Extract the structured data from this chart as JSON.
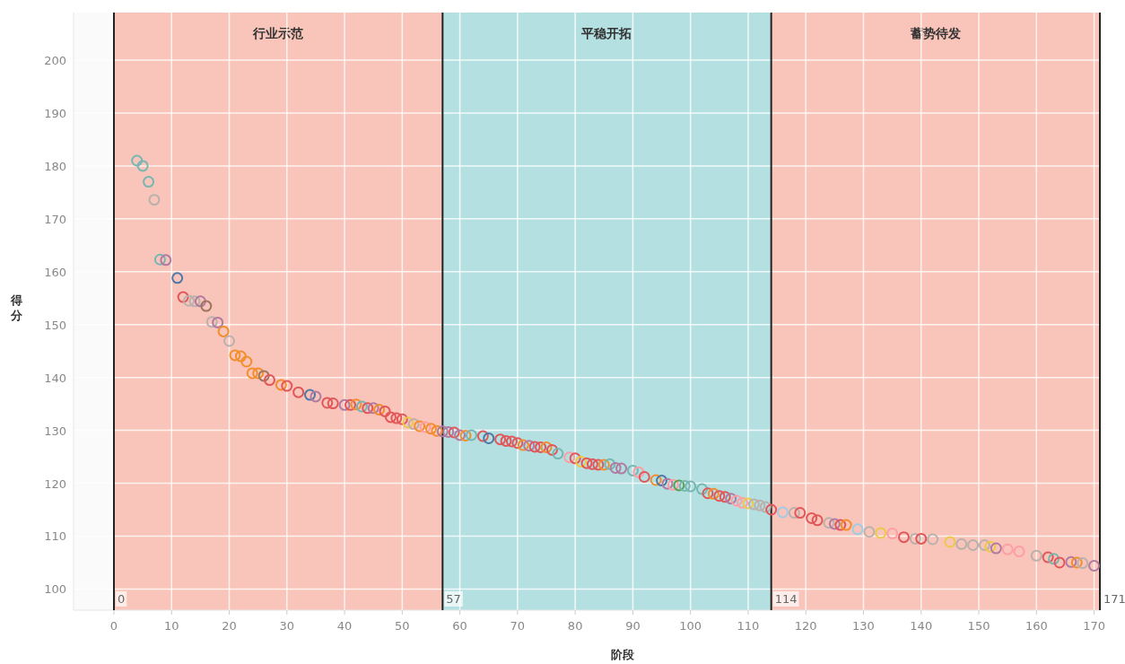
{
  "chart_data": {
    "type": "scatter",
    "xlabel": "阶段",
    "ylabel": "得分",
    "marker": "circle",
    "grid": true,
    "xlim": [
      -7,
      171
    ],
    "ylim": [
      96,
      209
    ],
    "xticks": [
      0,
      10,
      20,
      30,
      40,
      50,
      60,
      70,
      80,
      90,
      100,
      110,
      120,
      130,
      140,
      150,
      160,
      170
    ],
    "yticks": [
      100,
      110,
      120,
      130,
      140,
      150,
      160,
      170,
      180,
      190,
      200
    ],
    "bands": [
      {
        "axis": "x",
        "from": 0,
        "to": 57,
        "label": "行业示范",
        "color": "#f9c4b9"
      },
      {
        "axis": "x",
        "from": 57,
        "to": 114,
        "label": "平稳开拓",
        "color": "#b5e0e2"
      },
      {
        "axis": "x",
        "from": 114,
        "to": 171,
        "label": "蓄势待发",
        "color": "#f9c4b9"
      }
    ],
    "ref_lines": [
      {
        "axis": "x",
        "value": 0,
        "label": "0",
        "color": "#222222"
      },
      {
        "axis": "x",
        "value": 57,
        "label": "57",
        "color": "#222222"
      },
      {
        "axis": "x",
        "value": 114,
        "label": "114",
        "color": "#222222"
      },
      {
        "axis": "x",
        "value": 171,
        "label": "171",
        "color": "#222222"
      }
    ],
    "x": [
      4,
      5,
      6,
      7,
      8,
      9,
      11,
      12,
      13,
      14,
      15,
      16,
      17,
      18,
      19,
      20,
      21,
      22,
      23,
      24,
      25,
      26,
      27,
      29,
      30,
      32,
      34,
      35,
      37,
      38,
      40,
      41,
      42,
      43,
      44,
      45,
      46,
      47,
      48,
      49,
      50,
      51,
      52,
      53,
      54,
      55,
      56,
      57,
      58,
      59,
      60,
      61,
      62,
      64,
      65,
      67,
      68,
      69,
      70,
      71,
      72,
      73,
      74,
      75,
      76,
      77,
      79,
      80,
      81,
      82,
      83,
      84,
      85,
      86,
      87,
      88,
      90,
      91,
      92,
      94,
      95,
      96,
      97,
      98,
      99,
      100,
      102,
      103,
      104,
      105,
      106,
      107,
      108,
      109,
      110,
      111,
      112,
      113,
      114,
      116,
      118,
      119,
      121,
      122,
      124,
      125,
      126,
      127,
      129,
      131,
      133,
      135,
      137,
      139,
      140,
      142,
      145,
      147,
      149,
      151,
      152,
      153,
      155,
      157,
      160,
      162,
      163,
      164,
      166,
      167,
      168,
      170
    ],
    "values": [
      181,
      180,
      177,
      173.6,
      162.3,
      162.2,
      158.8,
      155.2,
      154.5,
      154.4,
      154.4,
      153.5,
      150.5,
      150.4,
      148.7,
      146.9,
      144.2,
      144,
      143,
      140.8,
      140.8,
      140.3,
      139.5,
      138.6,
      138.4,
      137.2,
      136.7,
      136.4,
      135.2,
      135.1,
      134.8,
      134.8,
      134.9,
      134.5,
      134.2,
      134.2,
      133.9,
      133.6,
      132.5,
      132.3,
      132.1,
      131.5,
      131.2,
      130.8,
      130.6,
      130.3,
      129.9,
      129.8,
      129.7,
      129.6,
      129.1,
      129,
      129.1,
      128.9,
      128.5,
      128.3,
      128,
      127.9,
      127.6,
      127.2,
      127.1,
      126.9,
      126.8,
      126.8,
      126.3,
      125.6,
      124.9,
      124.7,
      124.1,
      123.8,
      123.6,
      123.5,
      123.5,
      123.6,
      122.9,
      122.8,
      122.4,
      122.1,
      121.2,
      120.6,
      120.5,
      119.9,
      119.7,
      119.6,
      119.5,
      119.4,
      118.9,
      118.1,
      118,
      117.6,
      117.4,
      117.1,
      116.7,
      116.3,
      116.2,
      116,
      115.8,
      115.5,
      115,
      114.5,
      114.4,
      114.4,
      113.4,
      113,
      112.5,
      112.3,
      112.1,
      112.1,
      111.3,
      110.8,
      110.6,
      110.5,
      109.8,
      109.5,
      109.5,
      109.4,
      108.9,
      108.5,
      108.3,
      108.3,
      108,
      107.7,
      107.5,
      107.1,
      106.3,
      106,
      105.7,
      105,
      105.1,
      105,
      104.9,
      104.4
    ],
    "colors": [
      "#76b7b2",
      "#76b7b2",
      "#76b7b2",
      "#bab0ac",
      "#76b7b2",
      "#b07aa1",
      "#4e79a7",
      "#e15759",
      "#bab0ac",
      "#bab0ac",
      "#b07aa1",
      "#9c755f",
      "#bab0ac",
      "#b07aa1",
      "#f28e2b",
      "#bab0ac",
      "#f28e2b",
      "#f28e2b",
      "#f28e2b",
      "#f28e2b",
      "#f28e2b",
      "#9c755f",
      "#e15759",
      "#f28e2b",
      "#e15759",
      "#e15759",
      "#4e79a7",
      "#b07aa1",
      "#e15759",
      "#e15759",
      "#b07aa1",
      "#e15759",
      "#f28e2b",
      "#76b7b2",
      "#e15759",
      "#b07aa1",
      "#f28e2b",
      "#e15759",
      "#e15759",
      "#e15759",
      "#e15759",
      "#edc948",
      "#bab0ac",
      "#f28e2b",
      "#ff9da7",
      "#f28e2b",
      "#f28e2b",
      "#b07aa1",
      "#b07aa1",
      "#e15759",
      "#b07aa1",
      "#f28e2b",
      "#76b7b2",
      "#e15759",
      "#4e79a7",
      "#e15759",
      "#e15759",
      "#e15759",
      "#e15759",
      "#f28e2b",
      "#b07aa1",
      "#e15759",
      "#e15759",
      "#f28e2b",
      "#e15759",
      "#76b7b2",
      "#ff9da7",
      "#e15759",
      "#edc948",
      "#e15759",
      "#e15759",
      "#e15759",
      "#f28e2b",
      "#76b7b2",
      "#b07aa1",
      "#b07aa1",
      "#76b7b2",
      "#ff9da7",
      "#e15759",
      "#f28e2b",
      "#4e79a7",
      "#b07aa1",
      "#ff9da7",
      "#59a14f",
      "#76b7b2",
      "#76b7b2",
      "#76b7b2",
      "#e15759",
      "#f28e2b",
      "#e15759",
      "#e15759",
      "#b07aa1",
      "#ff9da7",
      "#ff9da7",
      "#edc948",
      "#bab0ac",
      "#bab0ac",
      "#bab0ac",
      "#e15759",
      "#a0cbe8",
      "#bab0ac",
      "#e15759",
      "#e15759",
      "#e15759",
      "#bab0ac",
      "#b07aa1",
      "#e15759",
      "#f28e2b",
      "#a0cbe8",
      "#bab0ac",
      "#edc948",
      "#ff9da7",
      "#e15759",
      "#bab0ac",
      "#e15759",
      "#bab0ac",
      "#edc948",
      "#bab0ac",
      "#bab0ac",
      "#bab0ac",
      "#edc948",
      "#b07aa1",
      "#ff9da7",
      "#ff9da7",
      "#bab0ac",
      "#e15759",
      "#76b7b2",
      "#e15759",
      "#b07aa1",
      "#f28e2b",
      "#bab0ac",
      "#b07aa1"
    ]
  }
}
